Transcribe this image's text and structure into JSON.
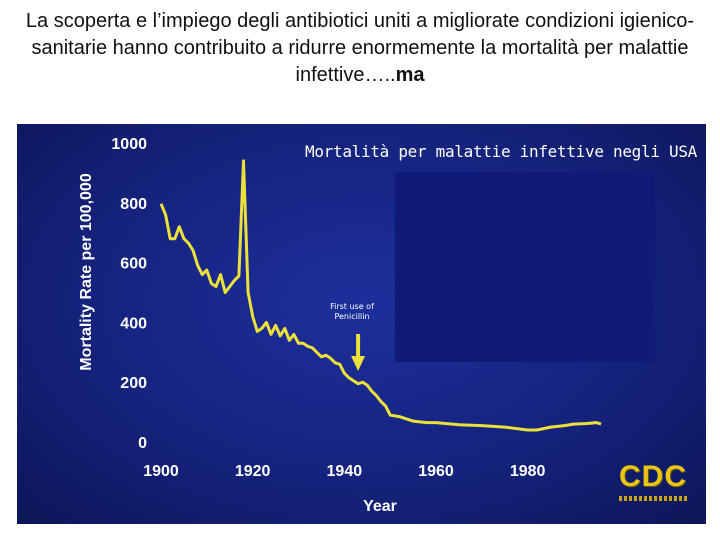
{
  "slide": {
    "title_lead": "La scoperta e l’impiego degli antibiotici uniti a migliorate condizioni igienico- sanitarie hanno contribuito a ridurre enormemente la mortalità per malattie infettive…..",
    "title_emphasis": "ma"
  },
  "colors": {
    "panel_bg": "#15237e",
    "line": "#ece03a",
    "arrow": "#ece03a",
    "axis_text": "#ffffff",
    "cdc_logo": "#e8c516"
  },
  "annotation": {
    "text_line1": "First use of",
    "text_line2": "Penicillin",
    "year": 1943,
    "icon": "down-arrow-icon"
  },
  "logo": {
    "text": "CDC"
  },
  "chart_data": {
    "type": "line",
    "title": "Mortalità per malattie infettive negli USA",
    "xlabel": "Year",
    "ylabel": "Mortality Rate per 100,000",
    "xlim": [
      1900,
      1996
    ],
    "ylim": [
      0,
      1000
    ],
    "x_ticks": [
      1900,
      1920,
      1940,
      1960,
      1980
    ],
    "y_ticks": [
      0,
      200,
      400,
      600,
      800,
      1000
    ],
    "grid": false,
    "series": [
      {
        "x": [
          1900,
          1901,
          1902,
          1903,
          1904,
          1905,
          1906,
          1907,
          1908,
          1909,
          1910,
          1911,
          1912,
          1913,
          1914,
          1915,
          1916,
          1917,
          1918,
          1919,
          1920,
          1921,
          1922,
          1923,
          1924,
          1925,
          1926,
          1927,
          1928,
          1929,
          1930,
          1931,
          1932,
          1933,
          1934,
          1935,
          1936,
          1937,
          1938,
          1939,
          1940,
          1941,
          1942,
          1943,
          1944,
          1945,
          1946,
          1947,
          1948,
          1949,
          1950,
          1952,
          1955,
          1958,
          1960,
          1965,
          1970,
          1975,
          1980,
          1982,
          1985,
          1988,
          1990,
          1993,
          1995,
          1996
        ],
        "values": [
          797,
          760,
          680,
          680,
          720,
          680,
          665,
          640,
          590,
          560,
          575,
          530,
          520,
          560,
          500,
          520,
          540,
          555,
          940,
          500,
          420,
          370,
          380,
          400,
          360,
          390,
          355,
          380,
          340,
          360,
          330,
          330,
          320,
          315,
          300,
          285,
          290,
          280,
          265,
          260,
          230,
          215,
          205,
          195,
          200,
          190,
          170,
          155,
          135,
          120,
          90,
          85,
          70,
          65,
          65,
          58,
          55,
          50,
          40,
          40,
          50,
          55,
          60,
          62,
          65,
          60
        ]
      }
    ]
  }
}
